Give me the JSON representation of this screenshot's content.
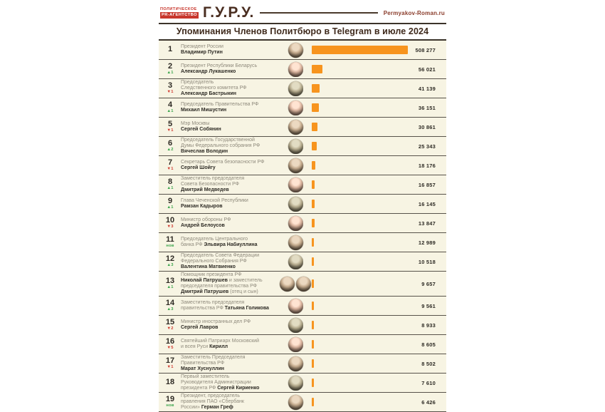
{
  "brand": {
    "agency_line1": "ПОЛИТИЧЕСКОЕ",
    "agency_line2": "PR-АГЕНТСТВО",
    "logo": "Г.У.Р.У.",
    "site": "Permyakov-Roman.ru"
  },
  "title": "Упоминания Членов Политбюро в Telegram в июле 2024",
  "colors": {
    "bar_orange": "#F7941E",
    "row_background": "#F7F4E3",
    "up_green": "#3AA54B",
    "down_red": "#D03A2F",
    "brand_red": "#C8372D",
    "dark_brown": "#3F2A1C"
  },
  "rows": [
    {
      "rank": "1",
      "change": null,
      "photos": 1,
      "value": 508277,
      "value_label": "508 277",
      "lines": [
        [
          {
            "t": "Президент России",
            "b": false
          }
        ],
        [
          {
            "t": "Владимир Путин",
            "b": true
          }
        ]
      ]
    },
    {
      "rank": "2",
      "change": {
        "dir": "up",
        "label": "1"
      },
      "photos": 1,
      "value": 56021,
      "value_label": "56 021",
      "lines": [
        [
          {
            "t": "Президент Республики Беларусь",
            "b": false
          }
        ],
        [
          {
            "t": "Александр Лукашенко",
            "b": true
          }
        ]
      ]
    },
    {
      "rank": "3",
      "change": {
        "dir": "down",
        "label": "1"
      },
      "photos": 1,
      "value": 41139,
      "value_label": "41 139",
      "lines": [
        [
          {
            "t": "Председатель",
            "b": false
          }
        ],
        [
          {
            "t": "Следственного комитета РФ",
            "b": false
          }
        ],
        [
          {
            "t": "Александр Бастрыкин",
            "b": true
          }
        ]
      ]
    },
    {
      "rank": "4",
      "change": {
        "dir": "up",
        "label": "1"
      },
      "photos": 1,
      "value": 36151,
      "value_label": "36 151",
      "lines": [
        [
          {
            "t": "Председатель Правительства РФ",
            "b": false
          }
        ],
        [
          {
            "t": "Михаил Мишустин",
            "b": true
          }
        ]
      ]
    },
    {
      "rank": "5",
      "change": {
        "dir": "down",
        "label": "1"
      },
      "photos": 1,
      "value": 30861,
      "value_label": "30 861",
      "lines": [
        [
          {
            "t": "Мэр Москвы",
            "b": false
          }
        ],
        [
          {
            "t": "Сергей Собянин",
            "b": true
          }
        ]
      ]
    },
    {
      "rank": "6",
      "change": {
        "dir": "up",
        "label": "2"
      },
      "photos": 1,
      "value": 25343,
      "value_label": "25 343",
      "lines": [
        [
          {
            "t": "Председатель Государственной",
            "b": false
          }
        ],
        [
          {
            "t": "Думы Федерального собрания РФ",
            "b": false
          }
        ],
        [
          {
            "t": "Вячеслав Володин",
            "b": true
          }
        ]
      ]
    },
    {
      "rank": "7",
      "change": {
        "dir": "down",
        "label": "1"
      },
      "photos": 1,
      "value": 18176,
      "value_label": "18 176",
      "lines": [
        [
          {
            "t": "Секретарь Совета безопасности РФ",
            "b": false
          }
        ],
        [
          {
            "t": "Сергей Шойгу",
            "b": true
          }
        ]
      ]
    },
    {
      "rank": "8",
      "change": {
        "dir": "up",
        "label": "1"
      },
      "photos": 1,
      "value": 16857,
      "value_label": "16 857",
      "lines": [
        [
          {
            "t": "Заместитель председателя",
            "b": false
          }
        ],
        [
          {
            "t": "Совета Безопасности РФ",
            "b": false
          }
        ],
        [
          {
            "t": "Дмитрий Медведев",
            "b": true
          }
        ]
      ]
    },
    {
      "rank": "9",
      "change": {
        "dir": "up",
        "label": "1"
      },
      "photos": 1,
      "value": 16145,
      "value_label": "16 145",
      "lines": [
        [
          {
            "t": "Глава Чеченской Республики",
            "b": false
          }
        ],
        [
          {
            "t": "Рамзан Кадыров",
            "b": true
          }
        ]
      ]
    },
    {
      "rank": "10",
      "change": {
        "dir": "down",
        "label": "3"
      },
      "photos": 1,
      "value": 13847,
      "value_label": "13 847",
      "lines": [
        [
          {
            "t": "Министр обороны РФ",
            "b": false
          }
        ],
        [
          {
            "t": "Андрей Белоусов",
            "b": true
          }
        ]
      ]
    },
    {
      "rank": "11",
      "change": {
        "dir": "new",
        "label": "нов"
      },
      "photos": 1,
      "value": 12989,
      "value_label": "12 989",
      "lines": [
        [
          {
            "t": "Председатель Центрального",
            "b": false
          }
        ],
        [
          {
            "t": "банка РФ ",
            "b": false
          },
          {
            "t": "Эльвира Набиуллина",
            "b": true
          }
        ]
      ]
    },
    {
      "rank": "12",
      "change": {
        "dir": "up",
        "label": "3"
      },
      "photos": 1,
      "value": 10518,
      "value_label": "10 518",
      "lines": [
        [
          {
            "t": "Председатель Совета Федерации",
            "b": false
          }
        ],
        [
          {
            "t": "Федерального Собрания РФ",
            "b": false
          }
        ],
        [
          {
            "t": "Валентина Матвиенко",
            "b": true
          }
        ]
      ]
    },
    {
      "rank": "13",
      "change": {
        "dir": "up",
        "label": "1"
      },
      "photos": 2,
      "value": 9657,
      "value_label": "9 657",
      "lines": [
        [
          {
            "t": "Помощник президента РФ",
            "b": false
          }
        ],
        [
          {
            "t": "Николай Патрушев",
            "b": true
          },
          {
            "t": " и заместитель",
            "b": false
          }
        ],
        [
          {
            "t": "председателя правительства РФ",
            "b": false
          }
        ],
        [
          {
            "t": "Дмитрий Патрушев",
            "b": true
          },
          {
            "t": " (отец и сын)",
            "b": false
          }
        ]
      ]
    },
    {
      "rank": "14",
      "change": {
        "dir": "up",
        "label": "3"
      },
      "photos": 1,
      "value": 9561,
      "value_label": "9 561",
      "lines": [
        [
          {
            "t": "Заместитель председателя",
            "b": false
          }
        ],
        [
          {
            "t": "правительства РФ ",
            "b": false
          },
          {
            "t": "Татьяна Голикова",
            "b": true
          }
        ]
      ]
    },
    {
      "rank": "15",
      "change": {
        "dir": "down",
        "label": "2"
      },
      "photos": 1,
      "value": 8933,
      "value_label": "8 933",
      "lines": [
        [
          {
            "t": "Министр иностранных дел РФ",
            "b": false
          }
        ],
        [
          {
            "t": "Сергей Лавров",
            "b": true
          }
        ]
      ]
    },
    {
      "rank": "16",
      "change": {
        "dir": "down",
        "label": "5"
      },
      "photos": 1,
      "value": 8605,
      "value_label": "8 605",
      "lines": [
        [
          {
            "t": "Святейший Патриарх Московский",
            "b": false
          }
        ],
        [
          {
            "t": "и всея Руси ",
            "b": false
          },
          {
            "t": "Кирилл",
            "b": true
          }
        ]
      ]
    },
    {
      "rank": "17",
      "change": {
        "dir": "down",
        "label": "1"
      },
      "photos": 1,
      "value": 8502,
      "value_label": "8 502",
      "lines": [
        [
          {
            "t": "Заместитель Председателя",
            "b": false
          }
        ],
        [
          {
            "t": "Правительства РФ",
            "b": false
          }
        ],
        [
          {
            "t": "Марат Хуснуллин",
            "b": true
          }
        ]
      ]
    },
    {
      "rank": "18",
      "change": null,
      "photos": 1,
      "value": 7610,
      "value_label": "7 610",
      "lines": [
        [
          {
            "t": "Первый заместитель",
            "b": false
          }
        ],
        [
          {
            "t": "Руководителя Администрации",
            "b": false
          }
        ],
        [
          {
            "t": "президента РФ ",
            "b": false
          },
          {
            "t": "Сергей Кириенко",
            "b": true
          }
        ]
      ]
    },
    {
      "rank": "19",
      "change": {
        "dir": "new",
        "label": "нов"
      },
      "photos": 1,
      "value": 6426,
      "value_label": "6 426",
      "lines": [
        [
          {
            "t": "Президент, председатель",
            "b": false
          }
        ],
        [
          {
            "t": "правления ПАО «Сбербанк",
            "b": false
          }
        ],
        [
          {
            "t": "России» ",
            "b": false
          },
          {
            "t": "Герман Греф",
            "b": true
          }
        ]
      ]
    }
  ],
  "chart_data": {
    "type": "bar",
    "orientation": "horizontal",
    "title": "Упоминания Членов Политбюро в Telegram в июле 2024",
    "categories": [
      "Владимир Путин",
      "Александр Лукашенко",
      "Александр Бастрыкин",
      "Михаил Мишустин",
      "Сергей Собянин",
      "Вячеслав Володин",
      "Сергей Шойгу",
      "Дмитрий Медведев",
      "Рамзан Кадыров",
      "Андрей Белоусов",
      "Эльвира Набиуллина",
      "Валентина Матвиенко",
      "Николай Патрушев и Дмитрий Патрушев",
      "Татьяна Голикова",
      "Сергей Лавров",
      "Патриарх Кирилл",
      "Марат Хуснуллин",
      "Сергей Кириенко",
      "Герман Греф"
    ],
    "values": [
      508277,
      56021,
      41139,
      36151,
      30861,
      25343,
      18176,
      16857,
      16145,
      13847,
      12989,
      10518,
      9657,
      9561,
      8933,
      8605,
      8502,
      7610,
      6426
    ],
    "rank_changes": [
      "",
      "+1",
      "-1",
      "+1",
      "-1",
      "+2",
      "-1",
      "+1",
      "+1",
      "-3",
      "new",
      "+3",
      "+1",
      "+3",
      "-2",
      "-5",
      "-1",
      "",
      "new"
    ],
    "xlim": [
      0,
      508277
    ],
    "bar_color": "#F7941E",
    "legend": "none",
    "grid": false
  }
}
